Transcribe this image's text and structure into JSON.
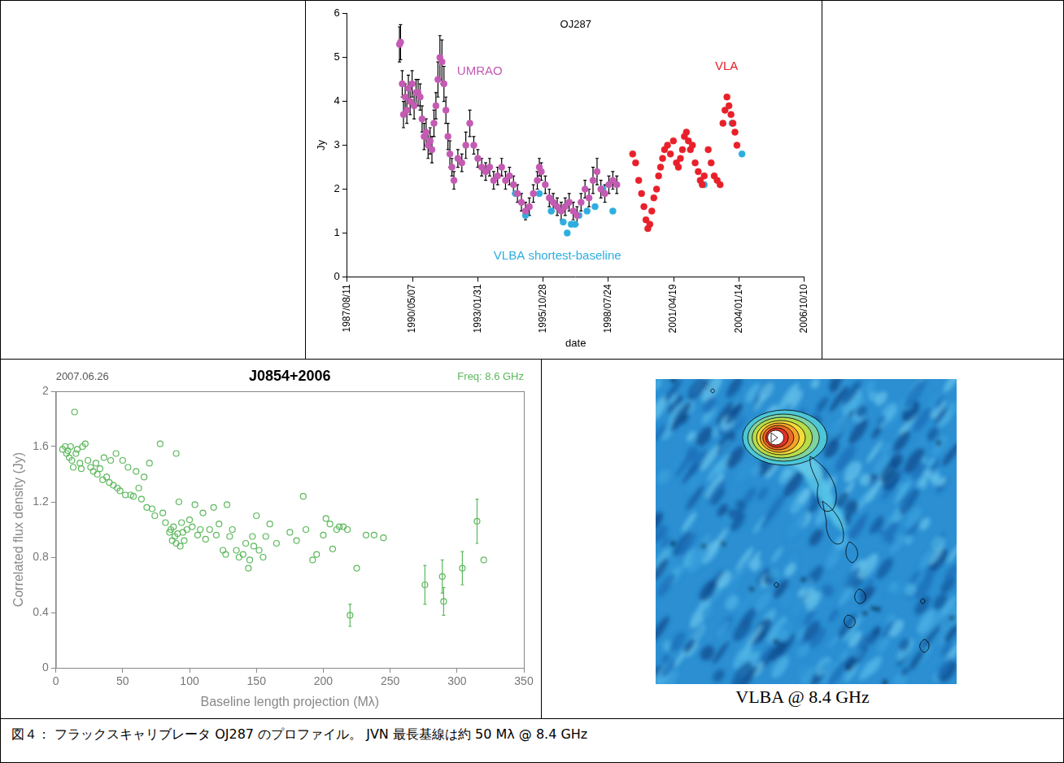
{
  "chart_data": [
    {
      "type": "scatter",
      "title": "OJ287",
      "x_label": "date",
      "y_label": "Jy",
      "xlim": [
        "1987/08/11",
        "2006/10/10"
      ],
      "xticks": [
        "1987/08/11",
        "1990/05/07",
        "1993/01/31",
        "1995/10/28",
        "1998/07/24",
        "2001/04/19",
        "2004/01/14",
        "2006/10/10"
      ],
      "ylim": [
        0,
        6
      ],
      "yticks": [
        0,
        1,
        2,
        3,
        4,
        5,
        6
      ],
      "grid": false,
      "marker": "circle",
      "series": [
        {
          "name": "UMRAO",
          "color": "#c45ab3",
          "x": [
            "1989/10/20",
            "1989/11/05",
            "1989/12/01",
            "1989/12/20",
            "1990/01/15",
            "1990/02/10",
            "1990/03/05",
            "1990/04/01",
            "1990/05/01",
            "1990/06/01",
            "1990/07/01",
            "1990/08/01",
            "1990/09/01",
            "1990/10/01",
            "1990/11/01",
            "1990/12/01",
            "1991/01/01",
            "1991/02/01",
            "1991/03/01",
            "1991/04/01",
            "1991/05/01",
            "1991/06/01",
            "1991/07/01",
            "1991/08/01",
            "1991/09/01",
            "1991/10/01",
            "1991/11/01",
            "1991/12/01",
            "1992/01/01",
            "1992/02/01",
            "1992/04/01",
            "1992/06/01",
            "1992/08/01",
            "1992/10/01",
            "1992/12/01",
            "1993/02/01",
            "1993/04/01",
            "1993/06/01",
            "1993/08/01",
            "1993/10/01",
            "1993/12/01",
            "1994/02/01",
            "1994/04/01",
            "1994/06/01",
            "1994/08/01",
            "1994/10/01",
            "1994/12/01",
            "1995/02/01",
            "1995/04/01",
            "1995/06/01",
            "1995/08/01",
            "1995/09/01",
            "1995/10/01",
            "1995/12/01",
            "1996/02/01",
            "1996/04/01",
            "1996/06/01",
            "1996/08/01",
            "1996/10/01",
            "1996/12/01",
            "1997/02/01",
            "1997/04/01",
            "1997/06/01",
            "1997/08/01",
            "1997/10/01",
            "1997/12/01",
            "1998/02/01",
            "1998/04/01",
            "1998/06/01",
            "1998/08/01",
            "1998/10/01",
            "1998/12/01"
          ],
          "values": [
            5.3,
            5.35,
            4.4,
            3.7,
            4.1,
            3.8,
            4.3,
            4.0,
            4.4,
            3.9,
            4.2,
            4.2,
            4.1,
            3.6,
            3.2,
            3.3,
            3.0,
            3.1,
            2.9,
            3.5,
            3.9,
            4.5,
            5.0,
            4.9,
            4.4,
            3.8,
            3.2,
            2.8,
            2.5,
            2.2,
            2.7,
            2.6,
            3.0,
            3.5,
            3.0,
            2.7,
            2.5,
            2.4,
            2.5,
            2.2,
            2.3,
            2.5,
            2.2,
            2.3,
            2.1,
            1.9,
            1.7,
            1.5,
            1.6,
            1.9,
            2.2,
            2.5,
            2.4,
            2.1,
            1.8,
            1.7,
            1.6,
            1.5,
            1.6,
            1.7,
            1.5,
            1.4,
            1.7,
            2.0,
            1.8,
            2.2,
            2.4,
            2.0,
            1.9,
            2.1,
            2.2,
            2.1
          ],
          "errors": [
            0.4,
            0.4,
            0.3,
            0.3,
            0.3,
            0.3,
            0.3,
            0.3,
            0.3,
            0.3,
            0.3,
            0.3,
            0.3,
            0.3,
            0.3,
            0.3,
            0.3,
            0.3,
            0.3,
            0.3,
            0.3,
            0.4,
            0.5,
            0.5,
            0.4,
            0.3,
            0.3,
            0.3,
            0.2,
            0.2,
            0.2,
            0.2,
            0.3,
            0.3,
            0.2,
            0.2,
            0.2,
            0.2,
            0.2,
            0.2,
            0.2,
            0.2,
            0.2,
            0.2,
            0.2,
            0.2,
            0.2,
            0.2,
            0.2,
            0.2,
            0.2,
            0.2,
            0.2,
            0.2,
            0.2,
            0.2,
            0.2,
            0.2,
            0.2,
            0.2,
            0.2,
            0.2,
            0.2,
            0.2,
            0.2,
            0.3,
            0.3,
            0.2,
            0.2,
            0.2,
            0.2,
            0.2
          ]
        },
        {
          "name": "VLA",
          "color": "#e8202a",
          "x": [
            "1999/08/01",
            "1999/09/15",
            "1999/11/01",
            "1999/12/15",
            "2000/01/20",
            "2000/02/20",
            "2000/03/20",
            "2000/04/20",
            "2000/05/20",
            "2000/06/20",
            "2000/08/01",
            "2000/09/01",
            "2000/10/01",
            "2000/11/01",
            "2000/12/01",
            "2001/01/15",
            "2001/03/01",
            "2001/04/15",
            "2001/06/01",
            "2001/07/01",
            "2001/08/01",
            "2001/09/01",
            "2001/10/01",
            "2001/11/01",
            "2001/12/01",
            "2002/01/01",
            "2002/02/01",
            "2002/03/15",
            "2002/05/01",
            "2002/06/01",
            "2002/07/01",
            "2002/08/01",
            "2002/10/01",
            "2002/11/15",
            "2003/01/01",
            "2003/02/15",
            "2003/04/01",
            "2003/05/15",
            "2003/06/15",
            "2003/07/15",
            "2003/08/15",
            "2003/09/15",
            "2003/10/15",
            "2003/11/15",
            "2003/12/15"
          ],
          "values": [
            2.8,
            2.6,
            2.2,
            1.9,
            1.6,
            1.3,
            1.1,
            1.2,
            1.5,
            1.8,
            2.0,
            2.3,
            2.5,
            2.7,
            2.9,
            3.0,
            2.8,
            3.1,
            2.6,
            2.5,
            2.7,
            2.9,
            3.2,
            3.3,
            3.1,
            2.9,
            3.0,
            2.6,
            2.4,
            2.2,
            2.1,
            2.3,
            2.9,
            2.6,
            2.3,
            2.2,
            2.1,
            3.5,
            3.8,
            4.1,
            3.9,
            3.7,
            3.5,
            3.3,
            3.0
          ]
        },
        {
          "name": "VLBA shortest-baseline",
          "color": "#2eaee0",
          "x": [
            "1994/09/01",
            "1995/02/01",
            "1995/09/01",
            "1996/03/01",
            "1996/09/01",
            "1996/11/01",
            "1997/01/01",
            "1997/03/01",
            "1997/05/01",
            "1997/09/01",
            "1998/01/01",
            "1998/05/01",
            "1998/10/01",
            "2002/08/01",
            "2003/10/01",
            "2004/03/01"
          ],
          "values": [
            1.9,
            1.4,
            1.9,
            1.5,
            1.25,
            1.0,
            1.2,
            1.2,
            1.4,
            1.5,
            1.6,
            2.0,
            1.5,
            2.1,
            3.5,
            2.8
          ]
        }
      ]
    },
    {
      "type": "scatter",
      "title": "J0854+2006",
      "subtitle": "2007.06.26",
      "annotations": [
        {
          "text": "Freq: 8.6 GHz",
          "color": "#5cb85c"
        }
      ],
      "x_label": "Baseline length projection (Mλ)",
      "y_label": "Correlated flux density (Jy)",
      "xlim": [
        0,
        350
      ],
      "xticks": [
        0,
        50,
        100,
        150,
        200,
        250,
        300,
        350
      ],
      "ylim": [
        0,
        2
      ],
      "yticks": [
        0,
        0.4,
        0.8,
        1.2,
        1.6,
        2
      ],
      "grid": false,
      "marker": "open_circle",
      "color": "#5cb85c",
      "x": [
        5,
        7,
        8,
        9,
        10,
        11,
        12,
        13,
        14,
        15,
        16,
        18,
        19,
        20,
        22,
        24,
        26,
        28,
        30,
        31,
        33,
        35,
        36,
        38,
        40,
        41,
        43,
        45,
        46,
        48,
        50,
        52,
        54,
        56,
        58,
        60,
        62,
        64,
        66,
        68,
        70,
        72,
        74,
        78,
        80,
        82,
        85,
        86,
        87,
        88,
        89,
        90,
        90,
        91,
        92,
        93,
        94,
        95,
        96,
        98,
        100,
        102,
        104,
        106,
        108,
        110,
        112,
        115,
        118,
        120,
        122,
        125,
        127,
        128,
        130,
        132,
        135,
        137,
        140,
        142,
        144,
        145,
        147,
        148,
        150,
        152,
        155,
        157,
        160,
        165,
        175,
        180,
        185,
        187,
        192,
        195,
        200,
        202,
        205,
        207,
        210,
        212,
        215,
        218,
        220,
        225,
        232,
        238,
        245,
        276,
        289,
        290,
        304,
        315,
        320
      ],
      "values": [
        1.58,
        1.6,
        1.55,
        1.57,
        1.52,
        1.6,
        1.5,
        1.45,
        1.85,
        1.55,
        1.58,
        1.48,
        1.44,
        1.6,
        1.62,
        1.5,
        1.45,
        1.42,
        1.48,
        1.4,
        1.44,
        1.36,
        1.52,
        1.38,
        1.34,
        1.5,
        1.32,
        1.55,
        1.3,
        1.28,
        1.5,
        1.25,
        1.45,
        1.25,
        1.24,
        1.42,
        1.3,
        1.22,
        1.38,
        1.16,
        1.48,
        1.15,
        1.1,
        1.62,
        1.12,
        1.05,
        0.98,
        1.0,
        0.92,
        1.02,
        0.95,
        1.55,
        0.9,
        0.97,
        1.2,
        0.88,
        1.05,
        0.98,
        0.92,
        1.0,
        1.07,
        1.02,
        1.18,
        0.96,
        1.0,
        1.12,
        0.93,
        1.0,
        1.16,
        0.96,
        1.04,
        0.85,
        0.82,
        1.18,
        0.95,
        1.0,
        0.85,
        0.8,
        0.82,
        0.9,
        0.72,
        0.78,
        0.95,
        0.88,
        1.1,
        0.85,
        0.8,
        0.95,
        1.04,
        0.9,
        0.98,
        0.92,
        1.24,
        1.0,
        0.78,
        0.82,
        0.96,
        1.08,
        1.04,
        0.86,
        1.0,
        1.02,
        1.02,
        1.0,
        0.38,
        0.72,
        0.96,
        0.96,
        0.94,
        0.6,
        0.66,
        0.48,
        0.72,
        1.06,
        0.78
      ],
      "errors": [
        null,
        null,
        null,
        null,
        null,
        null,
        null,
        null,
        null,
        null,
        null,
        null,
        null,
        null,
        null,
        null,
        null,
        null,
        null,
        null,
        null,
        null,
        null,
        null,
        null,
        null,
        null,
        null,
        null,
        null,
        null,
        null,
        null,
        null,
        null,
        null,
        null,
        null,
        null,
        null,
        null,
        null,
        null,
        null,
        null,
        null,
        null,
        null,
        null,
        null,
        null,
        null,
        null,
        null,
        null,
        null,
        null,
        null,
        null,
        null,
        null,
        null,
        null,
        null,
        null,
        null,
        null,
        null,
        null,
        null,
        null,
        null,
        null,
        null,
        null,
        null,
        null,
        null,
        null,
        null,
        null,
        null,
        null,
        null,
        null,
        null,
        null,
        null,
        null,
        null,
        null,
        null,
        null,
        null,
        null,
        null,
        null,
        null,
        null,
        null,
        null,
        null,
        null,
        null,
        0.08,
        null,
        null,
        null,
        null,
        0.14,
        0.12,
        0.1,
        0.12,
        0.16,
        null
      ]
    }
  ],
  "image": {
    "label": "VLBA @ 8.4 GHz"
  },
  "caption": "図４： フラックスキャリブレータ OJ287 のプロファイル。 JVN 最長基線は約 50 Mλ @ 8.4 GHz"
}
